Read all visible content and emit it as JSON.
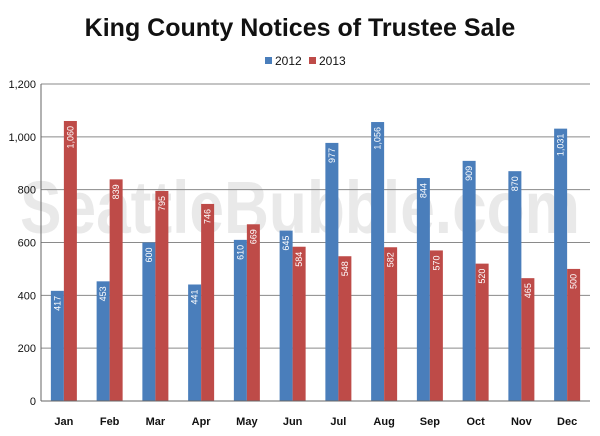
{
  "chart_data": {
    "type": "bar",
    "title": "King County Notices of Trustee Sale",
    "watermark": "SeattleBubble.com",
    "categories": [
      "Jan",
      "Feb",
      "Mar",
      "Apr",
      "May",
      "Jun",
      "Jul",
      "Aug",
      "Sep",
      "Oct",
      "Nov",
      "Dec"
    ],
    "series": [
      {
        "name": "2012",
        "color": "#4a7ebb",
        "values": [
          417,
          453,
          600,
          441,
          610,
          645,
          977,
          1056,
          844,
          909,
          870,
          1031
        ],
        "labels": [
          "417",
          "453",
          "600",
          "441",
          "610",
          "645",
          "977",
          "1,056",
          "844",
          "909",
          "870",
          "1,031"
        ]
      },
      {
        "name": "2013",
        "color": "#be4b48",
        "values": [
          1060,
          839,
          795,
          746,
          669,
          584,
          548,
          582,
          570,
          520,
          465,
          500
        ],
        "labels": [
          "1,060",
          "839",
          "795",
          "746",
          "669",
          "584",
          "548",
          "582",
          "570",
          "520",
          "465",
          "500"
        ]
      }
    ],
    "ylim": [
      0,
      1200
    ],
    "yticks": [
      0,
      200,
      400,
      600,
      800,
      1000,
      1200
    ],
    "ytick_labels": [
      "0",
      "200",
      "400",
      "600",
      "800",
      "1,000",
      "1,200"
    ],
    "legend_position": "top-center",
    "grid": true
  }
}
